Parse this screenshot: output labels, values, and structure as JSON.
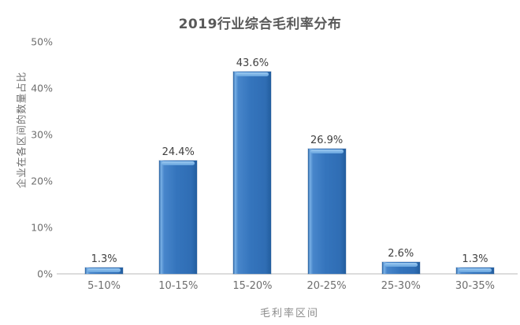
{
  "chart_data": {
    "type": "bar",
    "title": "2019行业综合毛利率分布",
    "xlabel": "毛利率区间",
    "ylabel": "企业在各区间的数量占比",
    "categories": [
      "5-10%",
      "10-15%",
      "15-20%",
      "20-25%",
      "25-30%",
      "30-35%"
    ],
    "values": [
      1.3,
      24.4,
      43.6,
      26.9,
      2.6,
      1.3
    ],
    "value_labels": [
      "1.3%",
      "24.4%",
      "43.6%",
      "26.9%",
      "2.6%",
      "1.3%"
    ],
    "ylim": [
      0,
      50
    ],
    "y_ticks": [
      {
        "label": "0%",
        "value": 0
      },
      {
        "label": "10%",
        "value": 10
      },
      {
        "label": "20%",
        "value": 20
      },
      {
        "label": "30%",
        "value": 30
      },
      {
        "label": "40%",
        "value": 40
      },
      {
        "label": "50%",
        "value": 50
      }
    ],
    "grid": false,
    "legend": false,
    "colors": {
      "bar_main": "#3575bd",
      "bar_light": "#79b0e6",
      "bar_dark": "#235e9e",
      "cap_light": "#9ccaf1",
      "cap_dark": "#66a3dd",
      "axis_line": "#dcdcdc",
      "tick_text": "#6e6e6e",
      "label_text": "#404040",
      "title_text": "#595959",
      "xtitle_text": "#8c8c8c"
    }
  }
}
